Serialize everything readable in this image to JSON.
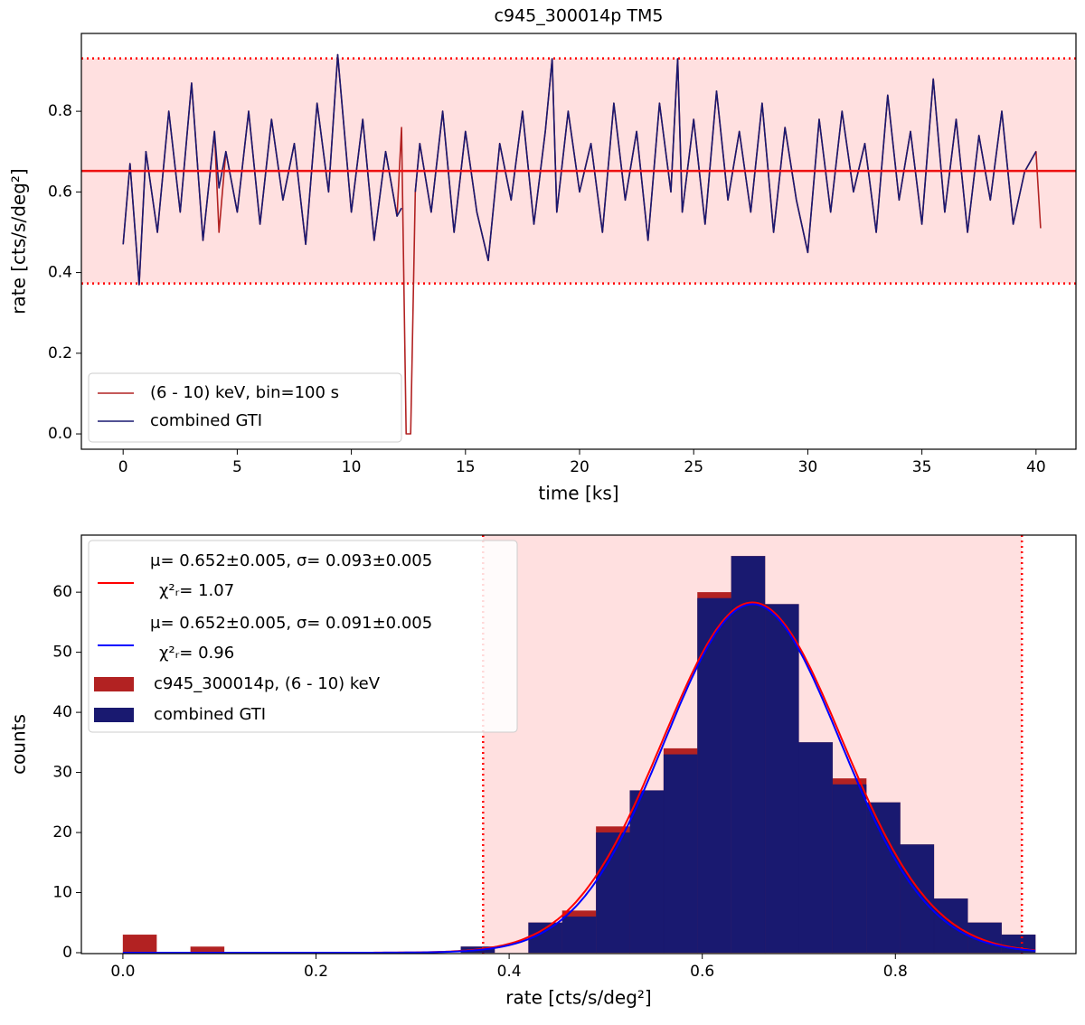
{
  "chart_data": [
    {
      "type": "line",
      "title": "c945_300014p TM5",
      "xlabel": "time [ks]",
      "ylabel": "rate [cts/s/deg²]",
      "x": [
        0,
        0.3,
        0.7,
        1,
        1.5,
        2,
        2.5,
        3,
        3.5,
        4,
        4.2,
        4.5,
        5,
        5.5,
        6,
        6.5,
        7,
        7.5,
        8,
        8.5,
        9,
        9.4,
        10,
        10.5,
        11,
        11.5,
        12,
        12.2,
        12.4,
        12.6,
        12.8,
        13,
        13.5,
        14,
        14.5,
        15,
        15.5,
        16,
        16.5,
        17,
        17.5,
        18,
        18.5,
        18.8,
        19,
        19.5,
        20,
        20.5,
        21,
        21.5,
        22,
        22.5,
        23,
        23.5,
        24,
        24.3,
        24.5,
        25,
        25.5,
        26,
        26.5,
        27,
        27.5,
        28,
        28.5,
        29,
        29.5,
        30,
        30.5,
        31,
        31.5,
        32,
        32.5,
        33,
        33.5,
        34,
        34.5,
        35,
        35.5,
        36,
        36.5,
        37,
        37.5,
        38,
        38.5,
        39,
        39.5,
        40,
        40.2
      ],
      "series": [
        {
          "name": "(6 - 10) keV, bin=100 s",
          "color": "#b22222",
          "values": [
            0.47,
            0.67,
            0.37,
            0.7,
            0.5,
            0.8,
            0.55,
            0.87,
            0.48,
            0.75,
            0.5,
            0.7,
            0.55,
            0.8,
            0.52,
            0.78,
            0.58,
            0.72,
            0.47,
            0.82,
            0.6,
            0.94,
            0.55,
            0.78,
            0.48,
            0.7,
            0.54,
            0.76,
            0.0,
            0.0,
            0.6,
            0.72,
            0.55,
            0.8,
            0.5,
            0.75,
            0.55,
            0.43,
            0.72,
            0.58,
            0.8,
            0.52,
            0.75,
            0.93,
            0.55,
            0.8,
            0.6,
            0.72,
            0.5,
            0.82,
            0.58,
            0.75,
            0.48,
            0.82,
            0.6,
            0.93,
            0.55,
            0.78,
            0.52,
            0.85,
            0.58,
            0.75,
            0.55,
            0.82,
            0.5,
            0.76,
            0.58,
            0.45,
            0.78,
            0.55,
            0.8,
            0.6,
            0.72,
            0.5,
            0.84,
            0.58,
            0.75,
            0.52,
            0.88,
            0.55,
            0.78,
            0.5,
            0.74,
            0.58,
            0.8,
            0.52,
            0.65,
            0.7,
            0.51
          ]
        },
        {
          "name": "combined GTI",
          "color": "#191970",
          "values": [
            0.47,
            0.67,
            0.37,
            0.7,
            0.5,
            0.8,
            0.55,
            0.87,
            0.48,
            0.75,
            0.61,
            0.7,
            0.55,
            0.8,
            0.52,
            0.78,
            0.58,
            0.72,
            0.47,
            0.82,
            0.6,
            0.94,
            0.55,
            0.78,
            0.48,
            0.7,
            0.54,
            0.56,
            null,
            null,
            0.6,
            0.72,
            0.55,
            0.8,
            0.5,
            0.75,
            0.55,
            0.43,
            0.72,
            0.58,
            0.8,
            0.52,
            0.75,
            0.93,
            0.55,
            0.8,
            0.6,
            0.72,
            0.5,
            0.82,
            0.58,
            0.75,
            0.48,
            0.82,
            0.6,
            0.93,
            0.55,
            0.78,
            0.52,
            0.85,
            0.58,
            0.75,
            0.55,
            0.82,
            0.5,
            0.76,
            0.58,
            0.45,
            0.78,
            0.55,
            0.8,
            0.6,
            0.72,
            0.5,
            0.84,
            0.58,
            0.75,
            0.52,
            0.88,
            0.55,
            0.78,
            0.5,
            0.74,
            0.58,
            0.8,
            0.52,
            0.65,
            0.7,
            null
          ]
        }
      ],
      "mean_line": {
        "value": 0.652,
        "color": "#ee1111"
      },
      "band": [
        0.373,
        0.931
      ],
      "band_color": "#ff0000",
      "xlim": [
        -1.83,
        41.75
      ],
      "ylim": [
        -0.038,
        0.993
      ],
      "xticks": [
        0,
        5,
        10,
        15,
        20,
        25,
        30,
        35,
        40
      ],
      "yticks": [
        {
          "value": 0,
          "label": "0.0"
        },
        0.2,
        0.4,
        0.6,
        0.8
      ],
      "legend": "lower left"
    },
    {
      "type": "histogram",
      "xlabel": "rate [cts/s/deg²]",
      "ylabel": "counts",
      "bins": [
        0,
        0.035,
        0.07,
        0.105,
        0.14,
        0.175,
        0.21,
        0.245,
        0.28,
        0.315,
        0.35,
        0.385,
        0.42,
        0.455,
        0.49,
        0.525,
        0.56,
        0.595,
        0.63,
        0.665,
        0.7,
        0.735,
        0.77,
        0.805,
        0.84,
        0.875,
        0.91,
        0.945
      ],
      "series": [
        {
          "name": "c945_300014p, (6 - 10) keV",
          "color": "#b22222",
          "values": [
            3,
            0,
            1,
            0,
            0,
            0,
            0,
            0,
            0,
            0,
            1,
            0,
            5,
            7,
            21,
            27,
            34,
            60,
            66,
            58,
            35,
            29,
            25,
            18,
            9,
            5,
            3
          ]
        },
        {
          "name": "combined GTI",
          "color": "#191970",
          "values": [
            0,
            0,
            0,
            0,
            0,
            0,
            0,
            0,
            0,
            0,
            1,
            0,
            5,
            6,
            20,
            27,
            33,
            59,
            66,
            58,
            35,
            28,
            25,
            18,
            9,
            5,
            3
          ]
        }
      ],
      "fits": [
        {
          "label": "μ= 0.652±0.005, σ= 0.093±0.005",
          "chi2_label": "χ²ᵣ= 1.07",
          "color": "#ff0000",
          "mu": 0.652,
          "sigma": 0.093,
          "amplitude": 58.3
        },
        {
          "label": "μ= 0.652±0.005, σ= 0.091±0.005",
          "chi2_label": "χ²ᵣ= 0.96",
          "color": "#0000ff",
          "mu": 0.652,
          "sigma": 0.091,
          "amplitude": 58.0
        }
      ],
      "band": [
        0.373,
        0.931
      ],
      "band_color": "#ff0000",
      "xlim": [
        -0.043,
        0.987
      ],
      "ylim": [
        -0.15,
        69.5
      ],
      "xticks": [
        {
          "value": 0,
          "label": "0.0"
        },
        0.2,
        0.4,
        0.6,
        0.8
      ],
      "yticks": [
        0,
        10,
        20,
        30,
        40,
        50,
        60
      ],
      "legend": "upper left"
    }
  ]
}
